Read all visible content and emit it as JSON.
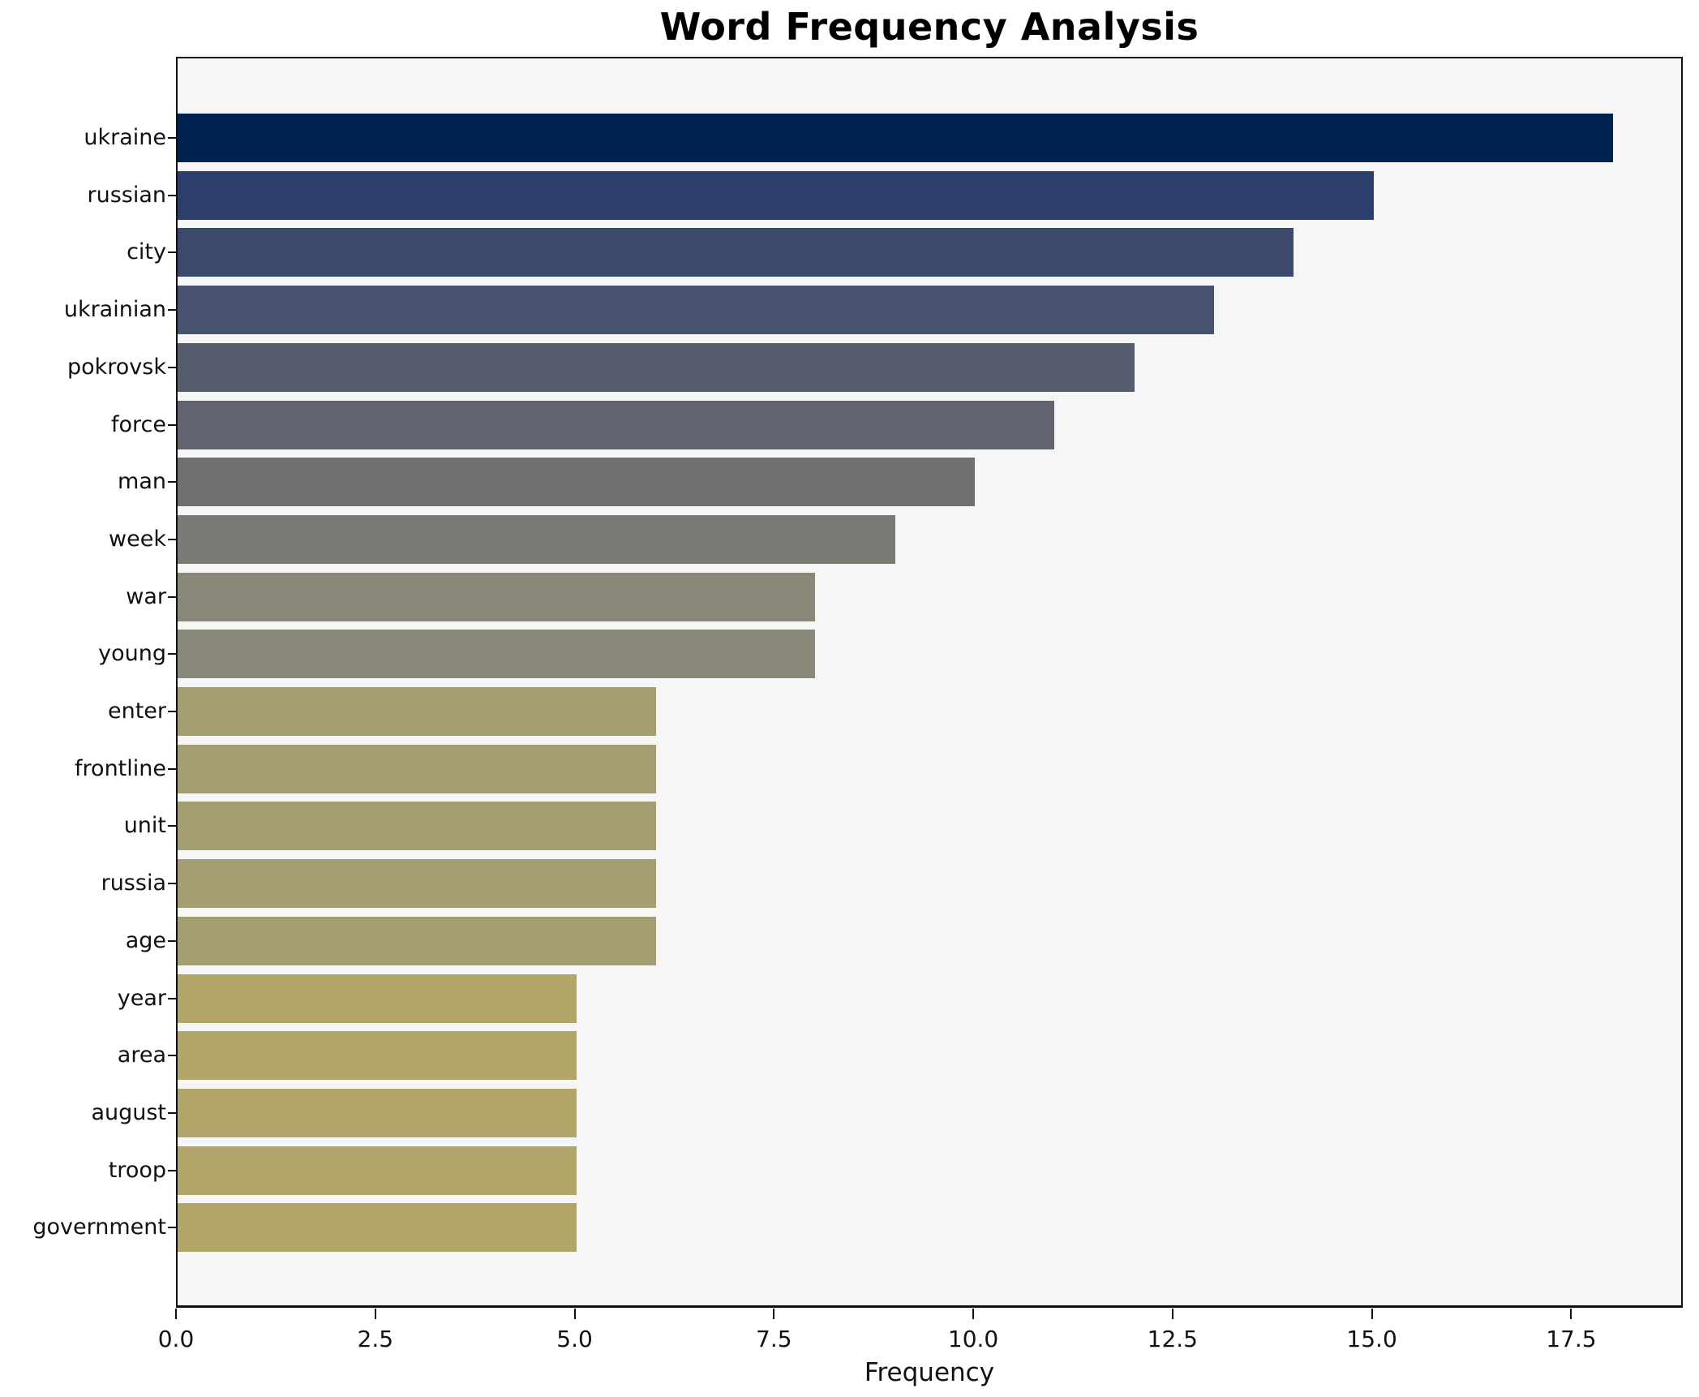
{
  "title": "Word Frequency Analysis",
  "chart_data": {
    "type": "bar",
    "orientation": "horizontal",
    "title": "Word Frequency Analysis",
    "xlabel": "Frequency",
    "ylabel": "",
    "xlim": [
      0,
      18.9
    ],
    "xticks": [
      0,
      2.5,
      5,
      7.5,
      10,
      12.5,
      15,
      17.5
    ],
    "grid": false,
    "legend": "none",
    "categories": [
      "ukraine",
      "russian",
      "city",
      "ukrainian",
      "pokrovsk",
      "force",
      "man",
      "week",
      "war",
      "young",
      "enter",
      "frontline",
      "unit",
      "russia",
      "age",
      "year",
      "area",
      "august",
      "troop",
      "government"
    ],
    "values": [
      18,
      15,
      14,
      13,
      12,
      11,
      10,
      9,
      8,
      8,
      6,
      6,
      6,
      6,
      6,
      5,
      5,
      5,
      5,
      5
    ],
    "bar_colors": [
      "#00224e",
      "#2b3e6c",
      "#3b496c",
      "#475270",
      "#555c6e",
      "#61646f",
      "#6e7072",
      "#7b7b76",
      "#8a8878",
      "#8a8878",
      "#a59e72",
      "#a59e72",
      "#a59e72",
      "#a59e72",
      "#a59e72",
      "#b1a569",
      "#b1a569",
      "#b1a569",
      "#b1a569",
      "#b1a569"
    ]
  },
  "colors": {
    "figure_bg": "#ffffff",
    "axes_bg": "#f6f6f7",
    "spine": "#111111",
    "text": "#111111"
  }
}
